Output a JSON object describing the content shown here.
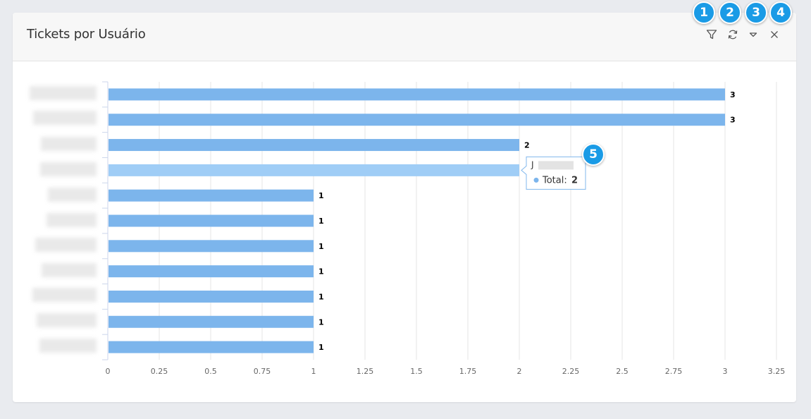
{
  "panel": {
    "title": "Tickets por Usuário"
  },
  "toolbar": {
    "filter_icon": "filter-icon",
    "refresh_icon": "refresh-icon",
    "collapse_icon": "chevron-down-icon",
    "close_icon": "close-icon"
  },
  "badges": [
    "1",
    "2",
    "3",
    "4",
    "5"
  ],
  "tooltip": {
    "name": "J",
    "series_label": "Total:",
    "value": "2"
  },
  "chart_data": {
    "type": "bar",
    "orientation": "horizontal",
    "categories": [
      "",
      "",
      "",
      "",
      "",
      "",
      "",
      "",
      "",
      "",
      ""
    ],
    "series": [
      {
        "name": "Total",
        "values": [
          3,
          3,
          2,
          2,
          1,
          1,
          1,
          1,
          1,
          1,
          1
        ]
      }
    ],
    "data_labels": [
      "3",
      "3",
      "2",
      "",
      "1",
      "1",
      "1",
      "1",
      "1",
      "1",
      "1"
    ],
    "xlim": [
      0,
      3.25
    ],
    "xticks": [
      "0",
      "0.25",
      "0.5",
      "0.75",
      "1",
      "1.25",
      "1.5",
      "1.75",
      "2",
      "2.25",
      "2.5",
      "2.75",
      "3",
      "3.25"
    ],
    "xtick_values": [
      0,
      0.25,
      0.5,
      0.75,
      1,
      1.25,
      1.5,
      1.75,
      2,
      2.25,
      2.5,
      2.75,
      3,
      3.25
    ],
    "grid": true,
    "highlighted_index": 3,
    "colors": {
      "bar": "#7cb5ec",
      "bar_hover": "#9fcdf6",
      "grid": "#e6e6e6",
      "axis": "#ccd6eb"
    }
  }
}
